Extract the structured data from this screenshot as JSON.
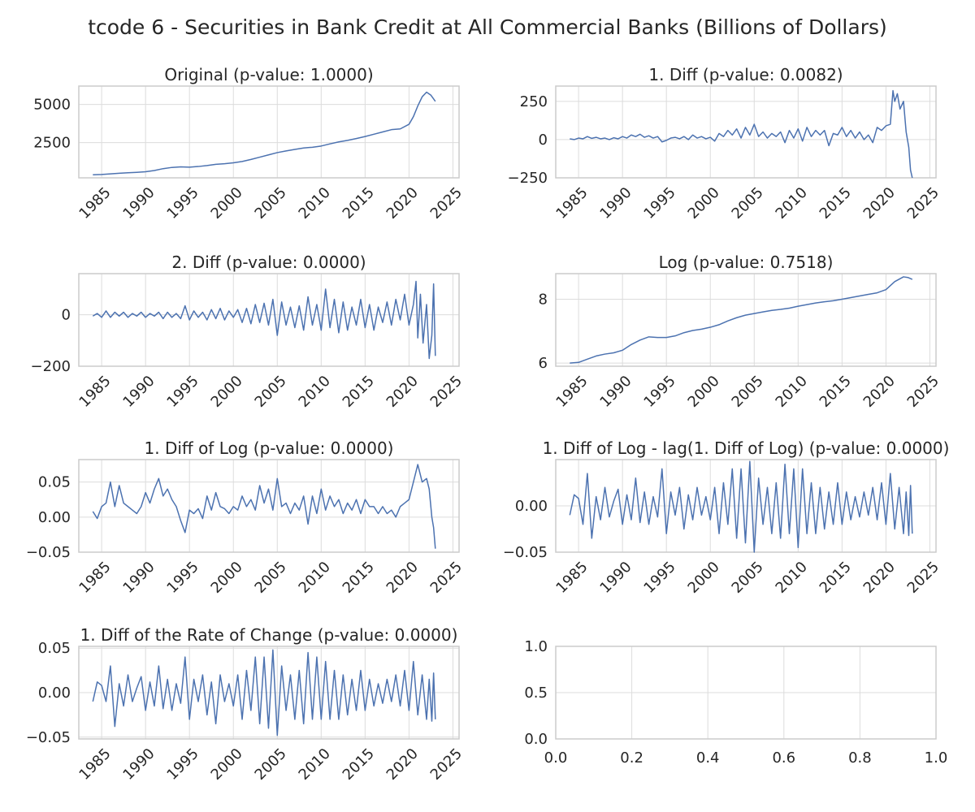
{
  "figure": {
    "title": "tcode 6 - Securities in Bank Credit at All Commercial Banks (Billions of Dollars)",
    "line_color": "#4c72b0",
    "grid": true
  },
  "chart_data": [
    {
      "type": "line",
      "title": "Original (p-value: 1.0000)",
      "x_ticks": [
        "1985",
        "1990",
        "1995",
        "2000",
        "2005",
        "2010",
        "2015",
        "2020",
        "2025"
      ],
      "y_ticks": [
        "2500",
        "5000"
      ],
      "ylim": [
        200,
        6200
      ],
      "x": [
        1984.0,
        1985.0,
        1986.0,
        1987.0,
        1988.0,
        1989.0,
        1990.0,
        1991.0,
        1992.0,
        1993.0,
        1994.0,
        1995.0,
        1996.0,
        1997.0,
        1998.0,
        1999.0,
        2000.0,
        2001.0,
        2002.0,
        2003.0,
        2004.0,
        2005.0,
        2006.0,
        2007.0,
        2008.0,
        2009.0,
        2010.0,
        2011.0,
        2012.0,
        2013.0,
        2014.0,
        2015.0,
        2016.0,
        2017.0,
        2018.0,
        2019.0,
        2020.0,
        2020.5,
        2021.0,
        2021.5,
        2022.0,
        2022.5,
        2023.0
      ],
      "y": [
        400,
        420,
        460,
        500,
        530,
        560,
        600,
        680,
        800,
        880,
        920,
        900,
        940,
        1000,
        1080,
        1120,
        1180,
        1270,
        1400,
        1550,
        1700,
        1850,
        1960,
        2060,
        2150,
        2200,
        2280,
        2420,
        2550,
        2650,
        2770,
        2900,
        3050,
        3200,
        3350,
        3400,
        3700,
        4200,
        4900,
        5500,
        5800,
        5600,
        5200
      ]
    },
    {
      "type": "line",
      "title": "1. Diff (p-value: 0.0082)",
      "x_ticks": [
        "1985",
        "1990",
        "1995",
        "2000",
        "2005",
        "2010",
        "2015",
        "2020",
        "2025"
      ],
      "y_ticks": [
        "−250",
        "0",
        "250"
      ],
      "ylim": [
        -250,
        350
      ],
      "x": [
        1984.0,
        1984.5,
        1985.0,
        1985.5,
        1986.0,
        1986.5,
        1987.0,
        1987.5,
        1988.0,
        1988.5,
        1989.0,
        1989.5,
        1990.0,
        1990.5,
        1991.0,
        1991.5,
        1992.0,
        1992.5,
        1993.0,
        1993.5,
        1994.0,
        1994.5,
        1995.0,
        1995.5,
        1996.0,
        1996.5,
        1997.0,
        1997.5,
        1998.0,
        1998.5,
        1999.0,
        1999.5,
        2000.0,
        2000.5,
        2001.0,
        2001.5,
        2002.0,
        2002.5,
        2003.0,
        2003.5,
        2004.0,
        2004.5,
        2005.0,
        2005.5,
        2006.0,
        2006.5,
        2007.0,
        2007.5,
        2008.0,
        2008.5,
        2009.0,
        2009.5,
        2010.0,
        2010.5,
        2011.0,
        2011.5,
        2012.0,
        2012.5,
        2013.0,
        2013.5,
        2014.0,
        2014.5,
        2015.0,
        2015.5,
        2016.0,
        2016.5,
        2017.0,
        2017.5,
        2018.0,
        2018.5,
        2019.0,
        2019.5,
        2020.0,
        2020.5,
        2020.8,
        2021.0,
        2021.3,
        2021.6,
        2022.0,
        2022.3,
        2022.6,
        2022.8,
        2023.0
      ],
      "y": [
        5,
        0,
        10,
        5,
        20,
        8,
        15,
        5,
        10,
        0,
        12,
        5,
        20,
        10,
        30,
        20,
        35,
        15,
        25,
        10,
        20,
        -15,
        -5,
        10,
        15,
        5,
        20,
        0,
        30,
        10,
        20,
        5,
        15,
        -10,
        40,
        20,
        60,
        30,
        70,
        10,
        80,
        30,
        100,
        20,
        50,
        10,
        40,
        20,
        50,
        -20,
        60,
        10,
        70,
        -10,
        80,
        20,
        60,
        30,
        60,
        -40,
        40,
        30,
        80,
        20,
        60,
        10,
        50,
        0,
        30,
        -20,
        80,
        60,
        90,
        100,
        320,
        250,
        300,
        200,
        250,
        50,
        -50,
        -200,
        -250
      ]
    },
    {
      "type": "line",
      "title": "2. Diff (p-value: 0.0000)",
      "x_ticks": [
        "1985",
        "1990",
        "1995",
        "2000",
        "2005",
        "2010",
        "2015",
        "2020",
        "2025"
      ],
      "y_ticks": [
        "−200",
        "0"
      ],
      "ylim": [
        -200,
        160
      ],
      "x": [
        1984.0,
        1984.5,
        1985.0,
        1985.5,
        1986.0,
        1986.5,
        1987.0,
        1987.5,
        1988.0,
        1988.5,
        1989.0,
        1989.5,
        1990.0,
        1990.5,
        1991.0,
        1991.5,
        1992.0,
        1992.5,
        1993.0,
        1993.5,
        1994.0,
        1994.5,
        1995.0,
        1995.5,
        1996.0,
        1996.5,
        1997.0,
        1997.5,
        1998.0,
        1998.5,
        1999.0,
        1999.5,
        2000.0,
        2000.5,
        2001.0,
        2001.5,
        2002.0,
        2002.5,
        2003.0,
        2003.5,
        2004.0,
        2004.5,
        2005.0,
        2005.5,
        2006.0,
        2006.5,
        2007.0,
        2007.5,
        2008.0,
        2008.5,
        2009.0,
        2009.5,
        2010.0,
        2010.5,
        2011.0,
        2011.5,
        2012.0,
        2012.5,
        2013.0,
        2013.5,
        2014.0,
        2014.5,
        2015.0,
        2015.5,
        2016.0,
        2016.5,
        2017.0,
        2017.5,
        2018.0,
        2018.5,
        2019.0,
        2019.5,
        2020.0,
        2020.5,
        2020.8,
        2021.0,
        2021.3,
        2021.6,
        2022.0,
        2022.3,
        2022.6,
        2022.8,
        2023.0
      ],
      "y": [
        -5,
        5,
        -10,
        15,
        -10,
        10,
        -5,
        10,
        -10,
        5,
        -5,
        10,
        -10,
        5,
        -5,
        10,
        -15,
        10,
        -10,
        5,
        -15,
        35,
        -20,
        15,
        -10,
        10,
        -20,
        20,
        -15,
        25,
        -20,
        15,
        -10,
        20,
        -30,
        25,
        -35,
        40,
        -30,
        45,
        -40,
        60,
        -80,
        50,
        -40,
        30,
        -50,
        35,
        -60,
        70,
        -40,
        40,
        -60,
        100,
        -50,
        60,
        -70,
        50,
        -60,
        30,
        -40,
        60,
        -50,
        40,
        -60,
        30,
        -30,
        50,
        -40,
        60,
        -20,
        80,
        -40,
        40,
        130,
        -90,
        80,
        -110,
        40,
        -170,
        -80,
        120,
        -160
      ]
    },
    {
      "type": "line",
      "title": "Log (p-value: 0.7518)",
      "x_ticks": [
        "1985",
        "1990",
        "1995",
        "2000",
        "2005",
        "2010",
        "2015",
        "2020",
        "2025"
      ],
      "y_ticks": [
        "6",
        "8"
      ],
      "ylim": [
        5.9,
        8.8
      ],
      "x": [
        1984.0,
        1985.0,
        1986.0,
        1987.0,
        1988.0,
        1989.0,
        1990.0,
        1991.0,
        1992.0,
        1993.0,
        1994.0,
        1995.0,
        1996.0,
        1997.0,
        1998.0,
        1999.0,
        2000.0,
        2001.0,
        2002.0,
        2003.0,
        2004.0,
        2005.0,
        2006.0,
        2007.0,
        2008.0,
        2009.0,
        2010.0,
        2011.0,
        2012.0,
        2013.0,
        2014.0,
        2015.0,
        2016.0,
        2017.0,
        2018.0,
        2019.0,
        2020.0,
        2021.0,
        2022.0,
        2022.5,
        2023.0
      ],
      "y": [
        6.0,
        6.02,
        6.12,
        6.22,
        6.28,
        6.32,
        6.4,
        6.58,
        6.72,
        6.82,
        6.8,
        6.8,
        6.85,
        6.95,
        7.02,
        7.06,
        7.12,
        7.2,
        7.32,
        7.42,
        7.5,
        7.55,
        7.6,
        7.65,
        7.68,
        7.72,
        7.78,
        7.83,
        7.88,
        7.92,
        7.95,
        8.0,
        8.05,
        8.1,
        8.15,
        8.2,
        8.3,
        8.55,
        8.7,
        8.68,
        8.62
      ]
    },
    {
      "type": "line",
      "title": "1. Diff of Log (p-value: 0.0000)",
      "x_ticks": [
        "1985",
        "1990",
        "1995",
        "2000",
        "2005",
        "2010",
        "2015",
        "2020",
        "2025"
      ],
      "y_ticks": [
        "−0.05",
        "0.00",
        "0.05"
      ],
      "ylim": [
        -0.05,
        0.082
      ],
      "x": [
        1984.0,
        1984.5,
        1985.0,
        1985.5,
        1986.0,
        1986.5,
        1987.0,
        1987.5,
        1988.0,
        1988.5,
        1989.0,
        1989.5,
        1990.0,
        1990.5,
        1991.0,
        1991.5,
        1992.0,
        1992.5,
        1993.0,
        1993.5,
        1994.0,
        1994.5,
        1995.0,
        1995.5,
        1996.0,
        1996.5,
        1997.0,
        1997.5,
        1998.0,
        1998.5,
        1999.0,
        1999.5,
        2000.0,
        2000.5,
        2001.0,
        2001.5,
        2002.0,
        2002.5,
        2003.0,
        2003.5,
        2004.0,
        2004.5,
        2005.0,
        2005.5,
        2006.0,
        2006.5,
        2007.0,
        2007.5,
        2008.0,
        2008.5,
        2009.0,
        2009.5,
        2010.0,
        2010.5,
        2011.0,
        2011.5,
        2012.0,
        2012.5,
        2013.0,
        2013.5,
        2014.0,
        2014.5,
        2015.0,
        2015.5,
        2016.0,
        2016.5,
        2017.0,
        2017.5,
        2018.0,
        2018.5,
        2019.0,
        2019.5,
        2020.0,
        2020.5,
        2021.0,
        2021.5,
        2022.0,
        2022.3,
        2022.6,
        2022.8,
        2023.0
      ],
      "y": [
        0.008,
        -0.002,
        0.015,
        0.02,
        0.05,
        0.015,
        0.045,
        0.02,
        0.015,
        0.01,
        0.005,
        0.015,
        0.035,
        0.02,
        0.04,
        0.055,
        0.03,
        0.04,
        0.025,
        0.015,
        -0.005,
        -0.022,
        0.01,
        0.005,
        0.012,
        -0.002,
        0.03,
        0.01,
        0.035,
        0.015,
        0.012,
        0.005,
        0.015,
        0.01,
        0.03,
        0.015,
        0.025,
        0.01,
        0.045,
        0.02,
        0.04,
        0.01,
        0.055,
        0.015,
        0.02,
        0.005,
        0.02,
        0.01,
        0.03,
        -0.01,
        0.03,
        0.005,
        0.04,
        0.01,
        0.03,
        0.015,
        0.025,
        0.005,
        0.02,
        0.01,
        0.025,
        0.005,
        0.025,
        0.015,
        0.015,
        0.005,
        0.015,
        0.005,
        0.01,
        0.0,
        0.015,
        0.02,
        0.025,
        0.05,
        0.075,
        0.05,
        0.055,
        0.04,
        0.0,
        -0.015,
        -0.045
      ]
    },
    {
      "type": "line",
      "title": "1. Diff of Log - lag(1. Diff of Log) (p-value: 0.0000)",
      "x_ticks": [
        "1985",
        "1990",
        "1995",
        "2000",
        "2005",
        "2010",
        "2015",
        "2020",
        "2025"
      ],
      "y_ticks": [
        "−0.05",
        "0.00"
      ],
      "ylim": [
        -0.05,
        0.05
      ],
      "x": [
        1984.0,
        1984.5,
        1985.0,
        1985.5,
        1986.0,
        1986.5,
        1987.0,
        1987.5,
        1988.0,
        1988.5,
        1989.0,
        1989.5,
        1990.0,
        1990.5,
        1991.0,
        1991.5,
        1992.0,
        1992.5,
        1993.0,
        1993.5,
        1994.0,
        1994.5,
        1995.0,
        1995.5,
        1996.0,
        1996.5,
        1997.0,
        1997.5,
        1998.0,
        1998.5,
        1999.0,
        1999.5,
        2000.0,
        2000.5,
        2001.0,
        2001.5,
        2002.0,
        2002.5,
        2003.0,
        2003.5,
        2004.0,
        2004.5,
        2005.0,
        2005.5,
        2006.0,
        2006.5,
        2007.0,
        2007.5,
        2008.0,
        2008.5,
        2009.0,
        2009.5,
        2010.0,
        2010.5,
        2011.0,
        2011.5,
        2012.0,
        2012.5,
        2013.0,
        2013.5,
        2014.0,
        2014.5,
        2015.0,
        2015.5,
        2016.0,
        2016.5,
        2017.0,
        2017.5,
        2018.0,
        2018.5,
        2019.0,
        2019.5,
        2020.0,
        2020.5,
        2021.0,
        2021.5,
        2022.0,
        2022.3,
        2022.6,
        2022.8,
        2023.0
      ],
      "y": [
        -0.01,
        0.012,
        0.008,
        -0.02,
        0.035,
        -0.035,
        0.01,
        -0.015,
        0.02,
        -0.012,
        0.005,
        0.018,
        -0.02,
        0.012,
        -0.015,
        0.03,
        -0.018,
        0.015,
        -0.02,
        0.01,
        -0.012,
        0.04,
        -0.03,
        0.015,
        -0.01,
        0.02,
        -0.025,
        0.012,
        -0.015,
        0.02,
        -0.01,
        0.01,
        -0.015,
        0.02,
        -0.03,
        0.025,
        -0.02,
        0.04,
        -0.035,
        0.04,
        -0.04,
        0.048,
        -0.05,
        0.03,
        -0.02,
        0.02,
        -0.03,
        0.025,
        -0.035,
        0.045,
        -0.03,
        0.04,
        -0.045,
        0.04,
        -0.03,
        0.025,
        -0.03,
        0.02,
        -0.025,
        0.015,
        -0.02,
        0.025,
        -0.02,
        0.015,
        -0.015,
        0.01,
        -0.012,
        0.015,
        -0.01,
        0.02,
        -0.015,
        0.025,
        -0.02,
        0.035,
        -0.025,
        0.02,
        -0.03,
        0.015,
        -0.032,
        0.022,
        -0.03
      ]
    },
    {
      "type": "line",
      "title": "1. Diff of the Rate of Change (p-value: 0.0000)",
      "x_ticks": [
        "1985",
        "1990",
        "1995",
        "2000",
        "2005",
        "2010",
        "2015",
        "2020",
        "2025"
      ],
      "y_ticks": [
        "−0.05",
        "0.00",
        "0.05"
      ],
      "ylim": [
        -0.052,
        0.052
      ],
      "x": [
        1984.0,
        1984.5,
        1985.0,
        1985.5,
        1986.0,
        1986.5,
        1987.0,
        1987.5,
        1988.0,
        1988.5,
        1989.0,
        1989.5,
        1990.0,
        1990.5,
        1991.0,
        1991.5,
        1992.0,
        1992.5,
        1993.0,
        1993.5,
        1994.0,
        1994.5,
        1995.0,
        1995.5,
        1996.0,
        1996.5,
        1997.0,
        1997.5,
        1998.0,
        1998.5,
        1999.0,
        1999.5,
        2000.0,
        2000.5,
        2001.0,
        2001.5,
        2002.0,
        2002.5,
        2003.0,
        2003.5,
        2004.0,
        2004.5,
        2005.0,
        2005.5,
        2006.0,
        2006.5,
        2007.0,
        2007.5,
        2008.0,
        2008.5,
        2009.0,
        2009.5,
        2010.0,
        2010.5,
        2011.0,
        2011.5,
        2012.0,
        2012.5,
        2013.0,
        2013.5,
        2014.0,
        2014.5,
        2015.0,
        2015.5,
        2016.0,
        2016.5,
        2017.0,
        2017.5,
        2018.0,
        2018.5,
        2019.0,
        2019.5,
        2020.0,
        2020.5,
        2021.0,
        2021.5,
        2022.0,
        2022.3,
        2022.6,
        2022.8,
        2023.0
      ],
      "y": [
        -0.01,
        0.012,
        0.008,
        -0.01,
        0.03,
        -0.038,
        0.01,
        -0.015,
        0.02,
        -0.01,
        0.005,
        0.018,
        -0.02,
        0.012,
        -0.015,
        0.03,
        -0.018,
        0.015,
        -0.02,
        0.01,
        -0.012,
        0.04,
        -0.03,
        0.015,
        -0.01,
        0.02,
        -0.025,
        0.012,
        -0.035,
        0.02,
        -0.01,
        0.01,
        -0.015,
        0.02,
        -0.03,
        0.025,
        -0.02,
        0.04,
        -0.035,
        0.04,
        -0.04,
        0.048,
        -0.048,
        0.03,
        -0.02,
        0.02,
        -0.03,
        0.025,
        -0.035,
        0.045,
        -0.03,
        0.04,
        -0.03,
        0.035,
        -0.03,
        0.025,
        -0.03,
        0.02,
        -0.025,
        0.015,
        -0.02,
        0.025,
        -0.02,
        0.015,
        -0.015,
        0.01,
        -0.012,
        0.015,
        -0.01,
        0.02,
        -0.015,
        0.025,
        -0.02,
        0.035,
        -0.025,
        0.02,
        -0.03,
        0.015,
        -0.032,
        0.022,
        -0.03
      ]
    },
    {
      "type": "line",
      "title": "",
      "x_ticks": [
        "0.0",
        "0.2",
        "0.4",
        "0.6",
        "0.8",
        "1.0"
      ],
      "y_ticks": [
        "0.0",
        "0.5",
        "1.0"
      ],
      "xlim": [
        0,
        1
      ],
      "ylim": [
        0,
        1
      ],
      "x": [],
      "y": []
    }
  ]
}
